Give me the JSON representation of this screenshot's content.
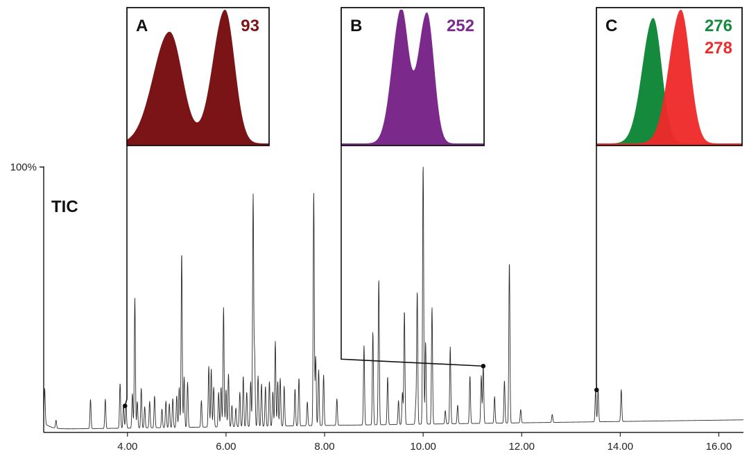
{
  "chart_data": {
    "type": "line",
    "title": "",
    "trace_label": "TIC",
    "xlabel": "",
    "ylabel": "",
    "y_top_label": "100%",
    "xlim": [
      2.3,
      16.5
    ],
    "ylim": [
      0,
      100
    ],
    "x_ticks": [
      4.0,
      6.0,
      8.0,
      10.0,
      12.0,
      14.0,
      16.0
    ],
    "x_tick_labels": [
      "4.00",
      "6.00",
      "8.00",
      "10.00",
      "12.00",
      "14.00",
      "16.00"
    ],
    "peaks": [
      {
        "rt": 2.32,
        "h": 13
      },
      {
        "rt": 2.55,
        "h": 3
      },
      {
        "rt": 3.25,
        "h": 11
      },
      {
        "rt": 3.55,
        "h": 11
      },
      {
        "rt": 3.85,
        "h": 17
      },
      {
        "rt": 3.92,
        "h": 9
      },
      {
        "rt": 3.97,
        "h": 9
      },
      {
        "rt": 4.1,
        "h": 13
      },
      {
        "rt": 4.15,
        "h": 49
      },
      {
        "rt": 4.2,
        "h": 10
      },
      {
        "rt": 4.28,
        "h": 15
      },
      {
        "rt": 4.35,
        "h": 8
      },
      {
        "rt": 4.45,
        "h": 10
      },
      {
        "rt": 4.55,
        "h": 12
      },
      {
        "rt": 4.7,
        "h": 7
      },
      {
        "rt": 4.78,
        "h": 10
      },
      {
        "rt": 4.85,
        "h": 9
      },
      {
        "rt": 4.92,
        "h": 11
      },
      {
        "rt": 5.0,
        "h": 12
      },
      {
        "rt": 5.05,
        "h": 15
      },
      {
        "rt": 5.1,
        "h": 66
      },
      {
        "rt": 5.15,
        "h": 19
      },
      {
        "rt": 5.22,
        "h": 17
      },
      {
        "rt": 5.5,
        "h": 10
      },
      {
        "rt": 5.65,
        "h": 23
      },
      {
        "rt": 5.7,
        "h": 22
      },
      {
        "rt": 5.75,
        "h": 15
      },
      {
        "rt": 5.85,
        "h": 13
      },
      {
        "rt": 5.9,
        "h": 15
      },
      {
        "rt": 5.95,
        "h": 45
      },
      {
        "rt": 6.0,
        "h": 14
      },
      {
        "rt": 6.05,
        "h": 20
      },
      {
        "rt": 6.12,
        "h": 8
      },
      {
        "rt": 6.2,
        "h": 7
      },
      {
        "rt": 6.28,
        "h": 13
      },
      {
        "rt": 6.35,
        "h": 19
      },
      {
        "rt": 6.42,
        "h": 13
      },
      {
        "rt": 6.5,
        "h": 17
      },
      {
        "rt": 6.55,
        "h": 87
      },
      {
        "rt": 6.58,
        "h": 27
      },
      {
        "rt": 6.65,
        "h": 19
      },
      {
        "rt": 6.72,
        "h": 16
      },
      {
        "rt": 6.8,
        "h": 15
      },
      {
        "rt": 6.88,
        "h": 17
      },
      {
        "rt": 6.95,
        "h": 13
      },
      {
        "rt": 7.0,
        "h": 32
      },
      {
        "rt": 7.05,
        "h": 17
      },
      {
        "rt": 7.1,
        "h": 18
      },
      {
        "rt": 7.18,
        "h": 15
      },
      {
        "rt": 7.4,
        "h": 14
      },
      {
        "rt": 7.48,
        "h": 18
      },
      {
        "rt": 7.65,
        "h": 9
      },
      {
        "rt": 7.78,
        "h": 88
      },
      {
        "rt": 7.82,
        "h": 26
      },
      {
        "rt": 7.88,
        "h": 21
      },
      {
        "rt": 7.98,
        "h": 19
      },
      {
        "rt": 8.25,
        "h": 10
      },
      {
        "rt": 8.8,
        "h": 30
      },
      {
        "rt": 8.98,
        "h": 35
      },
      {
        "rt": 9.1,
        "h": 55
      },
      {
        "rt": 9.28,
        "h": 18
      },
      {
        "rt": 9.5,
        "h": 9
      },
      {
        "rt": 9.58,
        "h": 12
      },
      {
        "rt": 9.62,
        "h": 43
      },
      {
        "rt": 9.85,
        "h": 7
      },
      {
        "rt": 9.88,
        "h": 50
      },
      {
        "rt": 10.0,
        "h": 100
      },
      {
        "rt": 10.05,
        "h": 31
      },
      {
        "rt": 10.18,
        "h": 44
      },
      {
        "rt": 10.45,
        "h": 5
      },
      {
        "rt": 10.55,
        "h": 29
      },
      {
        "rt": 10.7,
        "h": 7
      },
      {
        "rt": 10.95,
        "h": 18
      },
      {
        "rt": 11.18,
        "h": 18
      },
      {
        "rt": 11.22,
        "h": 22
      },
      {
        "rt": 11.45,
        "h": 10
      },
      {
        "rt": 11.65,
        "h": 16
      },
      {
        "rt": 11.75,
        "h": 61
      },
      {
        "rt": 11.98,
        "h": 5
      },
      {
        "rt": 12.62,
        "h": 3
      },
      {
        "rt": 13.5,
        "h": 12
      },
      {
        "rt": 13.55,
        "h": 12
      },
      {
        "rt": 14.02,
        "h": 12
      }
    ],
    "insets": [
      {
        "id": "A",
        "label": "A",
        "ion_labels": [
          "93"
        ],
        "colors": [
          "#7b1416"
        ],
        "marker_rt": 3.95,
        "marker_level": 10,
        "traces": [
          [
            {
              "c": 0.3,
              "w": 0.1,
              "h": 0.81
            },
            {
              "c": 0.69,
              "w": 0.075,
              "h": 0.97
            }
          ]
        ]
      },
      {
        "id": "B",
        "label": "B",
        "ion_labels": [
          "252"
        ],
        "colors": [
          "#7b2a8c"
        ],
        "marker_rt": 11.22,
        "marker_level": 25,
        "traces": [
          [
            {
              "c": 0.42,
              "w": 0.055,
              "h": 0.97
            },
            {
              "c": 0.6,
              "w": 0.055,
              "h": 0.95
            }
          ]
        ]
      },
      {
        "id": "C",
        "label": "C",
        "ion_labels": [
          "276",
          "278"
        ],
        "colors": [
          "#158a3d",
          "#ee2a2a"
        ],
        "marker_rt": 13.52,
        "marker_level": 16,
        "traces": [
          [
            {
              "c": 0.39,
              "w": 0.065,
              "h": 0.91
            }
          ],
          [
            {
              "c": 0.58,
              "w": 0.07,
              "h": 0.97
            }
          ]
        ]
      }
    ]
  }
}
